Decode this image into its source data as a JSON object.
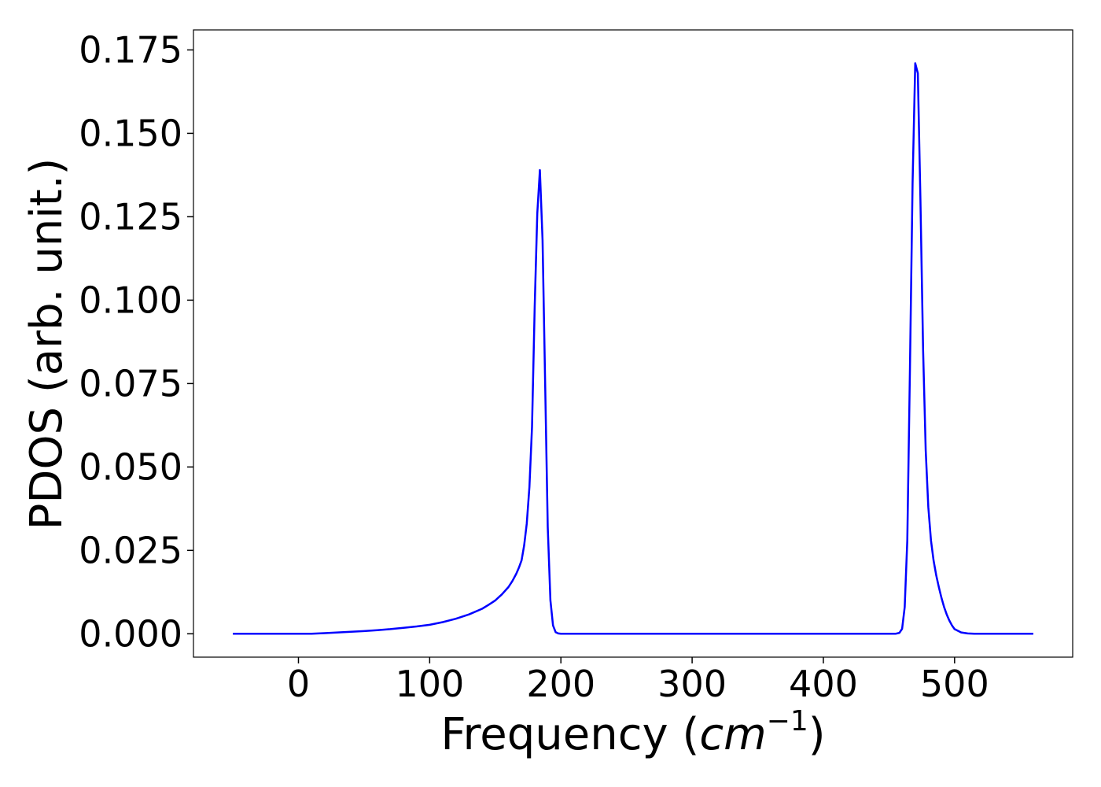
{
  "chart_data": {
    "type": "line",
    "title": "",
    "xlabel": "Frequency",
    "xlabel_unit_base": "cm",
    "xlabel_unit_exp": "−1",
    "ylabel": "PDOS (arb. unit.)",
    "xlim": [
      -80,
      590
    ],
    "ylim": [
      -0.007,
      0.181
    ],
    "xticks": [
      0,
      100,
      200,
      300,
      400,
      500
    ],
    "xtick_labels": [
      "0",
      "100",
      "200",
      "300",
      "400",
      "500"
    ],
    "yticks": [
      0,
      0.025,
      0.05,
      0.075,
      0.1,
      0.125,
      0.15,
      0.175
    ],
    "ytick_labels": [
      "0.000",
      "0.025",
      "0.050",
      "0.075",
      "0.100",
      "0.125",
      "0.150",
      "0.175"
    ],
    "grid": false,
    "color": "#0000ff",
    "series": [
      {
        "x": [
          -50,
          0,
          10,
          20,
          30,
          40,
          50,
          60,
          70,
          80,
          90,
          100,
          110,
          120,
          130,
          140,
          145,
          150,
          155,
          160,
          163,
          166,
          168,
          170,
          172,
          174,
          176,
          178,
          180,
          182,
          184,
          186,
          188,
          190,
          192,
          194,
          196,
          198,
          200,
          202,
          205,
          210,
          300,
          400,
          450,
          455,
          458,
          460,
          462,
          464,
          466,
          468,
          470,
          472,
          474,
          476,
          478,
          480,
          482,
          484,
          486,
          488,
          490,
          492,
          494,
          496,
          498,
          500,
          505,
          510,
          515,
          520,
          525,
          560
        ],
        "y": [
          0,
          0,
          0,
          0.0002,
          0.0004,
          0.0006,
          0.0008,
          0.0011,
          0.0014,
          0.0018,
          0.0022,
          0.0027,
          0.0035,
          0.0045,
          0.0058,
          0.0075,
          0.0087,
          0.01,
          0.0118,
          0.014,
          0.0158,
          0.018,
          0.0198,
          0.022,
          0.0265,
          0.033,
          0.044,
          0.062,
          0.098,
          0.126,
          0.139,
          0.118,
          0.075,
          0.032,
          0.01,
          0.0025,
          0.0005,
          0.0001,
          0,
          0,
          0,
          0,
          0,
          0,
          0,
          0,
          0.0003,
          0.0015,
          0.008,
          0.028,
          0.08,
          0.135,
          0.171,
          0.168,
          0.13,
          0.085,
          0.055,
          0.038,
          0.028,
          0.022,
          0.0175,
          0.014,
          0.0108,
          0.008,
          0.0058,
          0.004,
          0.0025,
          0.0014,
          0.0004,
          0.0001,
          0,
          0,
          0,
          0
        ]
      }
    ]
  }
}
